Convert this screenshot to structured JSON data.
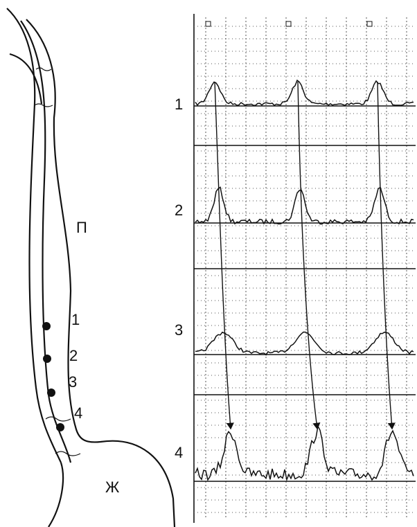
{
  "region_label": "П",
  "stomach_label": "Ж",
  "sensor_labels": [
    "1",
    "2",
    "3",
    "4"
  ],
  "trace_labels": [
    "1",
    "2",
    "3",
    "4"
  ]
}
